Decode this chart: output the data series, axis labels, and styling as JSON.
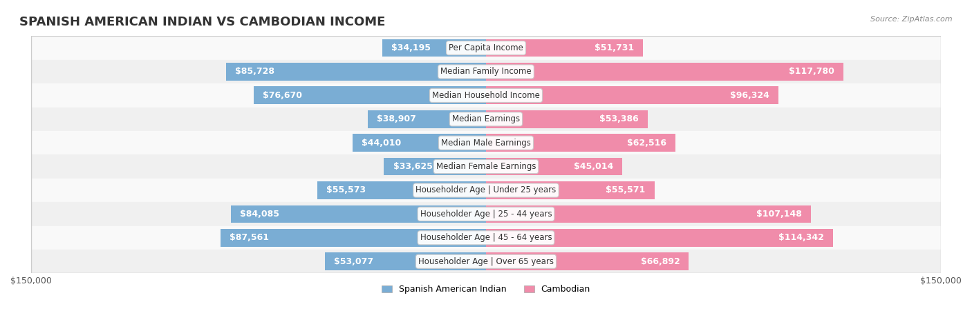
{
  "title": "SPANISH AMERICAN INDIAN VS CAMBODIAN INCOME",
  "source": "Source: ZipAtlas.com",
  "categories": [
    "Per Capita Income",
    "Median Family Income",
    "Median Household Income",
    "Median Earnings",
    "Median Male Earnings",
    "Median Female Earnings",
    "Householder Age | Under 25 years",
    "Householder Age | 25 - 44 years",
    "Householder Age | 45 - 64 years",
    "Householder Age | Over 65 years"
  ],
  "spanish_values": [
    34195,
    85728,
    76670,
    38907,
    44010,
    33625,
    55573,
    84085,
    87561,
    53077
  ],
  "cambodian_values": [
    51731,
    117780,
    96324,
    53386,
    62516,
    45014,
    55571,
    107148,
    114342,
    66892
  ],
  "spanish_labels": [
    "$34,195",
    "$85,728",
    "$76,670",
    "$38,907",
    "$44,010",
    "$33,625",
    "$55,573",
    "$84,085",
    "$87,561",
    "$53,077"
  ],
  "cambodian_labels": [
    "$51,731",
    "$117,780",
    "$96,324",
    "$53,386",
    "$62,516",
    "$45,014",
    "$55,571",
    "$107,148",
    "$114,342",
    "$66,892"
  ],
  "spanish_color": "#7aadd4",
  "cambodian_color": "#f08caa",
  "spanish_color_dark": "#5b8fbf",
  "cambodian_color_dark": "#e8547a",
  "max_val": 150000,
  "legend_spanish": "Spanish American Indian",
  "legend_cambodian": "Cambodian",
  "bg_color": "#f5f5f5",
  "row_bg_light": "#f9f9f9",
  "row_bg_dark": "#f0f0f0",
  "label_fontsize": 9,
  "title_fontsize": 13,
  "axis_label": "$150,000"
}
